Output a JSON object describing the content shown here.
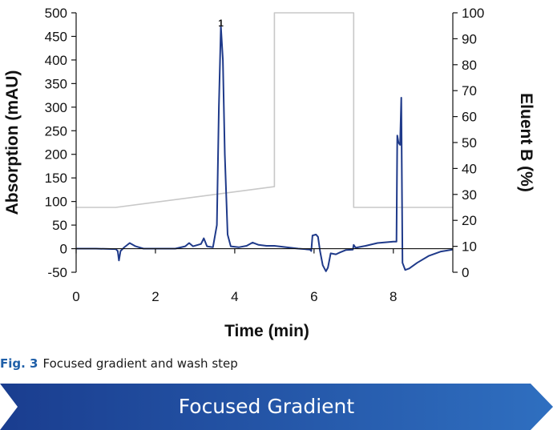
{
  "chart_data": {
    "type": "line",
    "xlabel": "Time (min)",
    "ylabel": "Absorption (mAU)",
    "y2label": "Eluent B (%)",
    "xlim": [
      0,
      9.5
    ],
    "ylim": [
      -50,
      500
    ],
    "y2lim": [
      0,
      100
    ],
    "x_ticks": [
      0,
      2,
      4,
      6,
      8
    ],
    "y_ticks": [
      -50,
      0,
      50,
      100,
      150,
      200,
      250,
      300,
      350,
      400,
      450,
      500
    ],
    "y2_ticks": [
      0,
      10,
      20,
      30,
      40,
      50,
      60,
      70,
      80,
      90,
      100
    ],
    "grid": false,
    "annotations": [
      {
        "text": "1",
        "x": 3.65,
        "y": 478
      }
    ],
    "series": [
      {
        "axis": "left",
        "color": "#1f3a8a",
        "points": [
          [
            0,
            0
          ],
          [
            0.5,
            0
          ],
          [
            1.0,
            -1
          ],
          [
            1.05,
            -5
          ],
          [
            1.08,
            -25
          ],
          [
            1.12,
            -5
          ],
          [
            1.2,
            2
          ],
          [
            1.35,
            12
          ],
          [
            1.5,
            5
          ],
          [
            1.7,
            0
          ],
          [
            2.0,
            0
          ],
          [
            2.5,
            0
          ],
          [
            2.75,
            5
          ],
          [
            2.85,
            12
          ],
          [
            2.95,
            5
          ],
          [
            3.15,
            10
          ],
          [
            3.22,
            22
          ],
          [
            3.3,
            5
          ],
          [
            3.45,
            3
          ],
          [
            3.55,
            50
          ],
          [
            3.6,
            300
          ],
          [
            3.65,
            472
          ],
          [
            3.7,
            400
          ],
          [
            3.75,
            200
          ],
          [
            3.82,
            30
          ],
          [
            3.9,
            5
          ],
          [
            4.1,
            3
          ],
          [
            4.3,
            6
          ],
          [
            4.45,
            13
          ],
          [
            4.6,
            8
          ],
          [
            4.8,
            6
          ],
          [
            5.0,
            6
          ],
          [
            5.3,
            3
          ],
          [
            5.6,
            0
          ],
          [
            5.9,
            -2
          ],
          [
            5.93,
            -5
          ],
          [
            5.96,
            28
          ],
          [
            6.05,
            30
          ],
          [
            6.1,
            25
          ],
          [
            6.15,
            -5
          ],
          [
            6.22,
            -35
          ],
          [
            6.3,
            -48
          ],
          [
            6.35,
            -40
          ],
          [
            6.42,
            -10
          ],
          [
            6.55,
            -12
          ],
          [
            6.65,
            -8
          ],
          [
            6.8,
            -3
          ],
          [
            6.98,
            -2
          ],
          [
            7.0,
            8
          ],
          [
            7.05,
            2
          ],
          [
            7.3,
            6
          ],
          [
            7.6,
            12
          ],
          [
            8.0,
            15
          ],
          [
            8.08,
            15
          ],
          [
            8.1,
            240
          ],
          [
            8.13,
            225
          ],
          [
            8.17,
            220
          ],
          [
            8.2,
            320
          ],
          [
            8.23,
            -30
          ],
          [
            8.3,
            -45
          ],
          [
            8.4,
            -42
          ],
          [
            8.6,
            -30
          ],
          [
            8.9,
            -15
          ],
          [
            9.2,
            -6
          ],
          [
            9.5,
            -2
          ]
        ]
      },
      {
        "axis": "right",
        "color": "#c8c8c8",
        "points": [
          [
            0,
            25
          ],
          [
            1.0,
            25
          ],
          [
            5.0,
            33
          ],
          [
            5.0,
            100
          ],
          [
            7.0,
            100
          ],
          [
            7.0,
            25
          ],
          [
            9.5,
            25
          ]
        ]
      }
    ]
  },
  "caption": {
    "fig_label": "Fig. 3",
    "text": "Focused gradient and wash step"
  },
  "banner": {
    "text": "Focused Gradient",
    "color_start": "#1a3d8f",
    "color_end": "#2f6fc0"
  }
}
